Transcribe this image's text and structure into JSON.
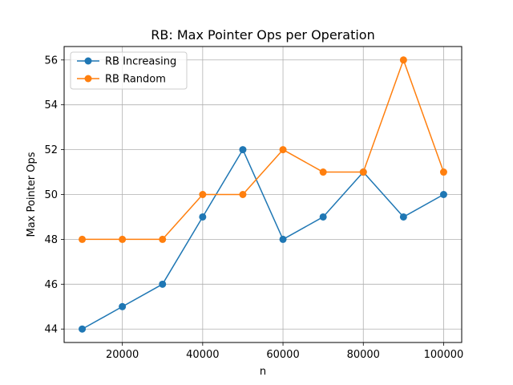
{
  "chart_data": {
    "type": "line",
    "title": "RB: Max Pointer Ops per Operation",
    "xlabel": "n",
    "ylabel": "Max Pointer Ops",
    "x": [
      10000,
      20000,
      30000,
      40000,
      50000,
      60000,
      70000,
      80000,
      90000,
      100000
    ],
    "series": [
      {
        "name": "RB Increasing",
        "color": "#1f77b4",
        "values": [
          44,
          45,
          46,
          49,
          52,
          48,
          49,
          51,
          49,
          50
        ]
      },
      {
        "name": "RB Random",
        "color": "#ff7f0e",
        "values": [
          48,
          48,
          48,
          50,
          50,
          52,
          51,
          51,
          56,
          51
        ]
      }
    ],
    "xlim": [
      5500,
      104500
    ],
    "ylim": [
      43.4,
      56.6
    ],
    "xticks": [
      20000,
      40000,
      60000,
      80000,
      100000
    ],
    "xtick_labels": [
      "20000",
      "40000",
      "60000",
      "80000",
      "100000"
    ],
    "yticks": [
      44,
      46,
      48,
      50,
      52,
      54,
      56
    ],
    "ytick_labels": [
      "44",
      "46",
      "48",
      "50",
      "52",
      "54",
      "56"
    ],
    "grid": true,
    "legend_position": "top-left"
  }
}
